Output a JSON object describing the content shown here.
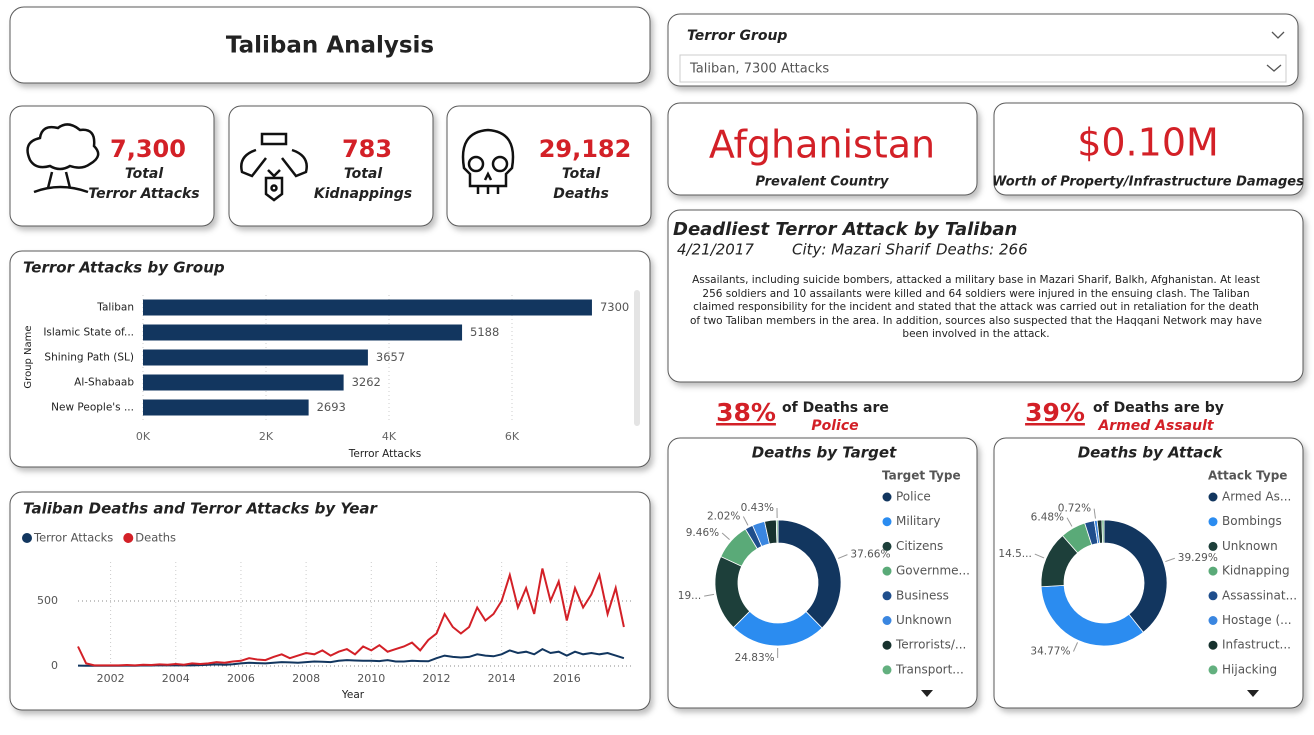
{
  "title": "Taliban Analysis",
  "filter": {
    "label": "Terror Group",
    "selected": "Taliban, 7300 Attacks"
  },
  "kpis": [
    {
      "value": "7,300",
      "label": [
        "Total",
        "Terror Attacks"
      ]
    },
    {
      "value": "783",
      "label": [
        "Total",
        "Kidnappings"
      ]
    },
    {
      "value": "29,182",
      "label": [
        "Total",
        "Deaths"
      ]
    }
  ],
  "country": {
    "value": "Afghanistan",
    "label": "Prevalent Country"
  },
  "damage": {
    "value": "$0.10M",
    "label": "Worth of Property/Infrastructure Damages"
  },
  "deadliest": {
    "title": "Deadliest Terror Attack by Taliban",
    "date": "4/21/2017",
    "city": "City: Mazari Sharif",
    "deaths": "Deaths: 266",
    "description": "Assailants, including suicide bombers, attacked a military base in Mazari Sharif, Balkh, Afghanistan. At least 256 soldiers and 10 assailants were killed and 64 soldiers were injured in the ensuing clash. The Taliban claimed responsibility for the incident and stated that the attack was carried out in retaliation for the death of two Taliban members in the area. In addition, sources also suspected that the Haqqani Network may have been involved in the attack."
  },
  "callouts": [
    {
      "percent": "38%",
      "text": "of Deaths are",
      "category": "Police"
    },
    {
      "percent": "39%",
      "text": "of Deaths are by",
      "category": "Armed Assault"
    }
  ],
  "chart_data": [
    {
      "type": "bar",
      "orientation": "horizontal",
      "title": "Terror Attacks by Group",
      "categories": [
        "Taliban",
        "Islamic State of...",
        "Shining Path (SL)",
        "Al-Shabaab",
        "New People's ..."
      ],
      "values": [
        7300,
        5188,
        3657,
        3262,
        2693
      ],
      "color": "#12365f",
      "xlim": [
        0,
        8000
      ],
      "xticks": [
        {
          "value": 0,
          "label": "0K"
        },
        {
          "value": 2000,
          "label": "2K"
        },
        {
          "value": 4000,
          "label": "4K"
        },
        {
          "value": 6000,
          "label": "6K"
        }
      ],
      "xlabel": "Terror Attacks",
      "ylabel": "Group Name",
      "grid": true
    },
    {
      "type": "line",
      "title": "Taliban Deaths and Terror Attacks by Year",
      "x": [
        2001,
        2001.25,
        2001.5,
        2001.75,
        2002,
        2002.25,
        2002.5,
        2002.75,
        2003,
        2003.25,
        2003.5,
        2003.75,
        2004,
        2004.25,
        2004.5,
        2004.75,
        2005,
        2005.25,
        2005.5,
        2005.75,
        2006,
        2006.25,
        2006.5,
        2006.75,
        2007,
        2007.25,
        2007.5,
        2007.75,
        2008,
        2008.25,
        2008.5,
        2008.75,
        2009,
        2009.25,
        2009.5,
        2009.75,
        2010,
        2010.25,
        2010.5,
        2010.75,
        2011,
        2011.25,
        2011.5,
        2011.75,
        2012,
        2012.25,
        2012.5,
        2012.75,
        2013,
        2013.25,
        2013.5,
        2013.75,
        2014,
        2014.25,
        2014.5,
        2014.75,
        2015,
        2015.25,
        2015.5,
        2015.75,
        2016,
        2016.25,
        2016.5,
        2016.75,
        2017,
        2017.25,
        2017.5,
        2017.75
      ],
      "series": [
        {
          "name": "Terror Attacks",
          "color": "#12365f",
          "values": [
            3,
            2,
            2,
            2,
            2,
            2,
            3,
            2,
            5,
            4,
            6,
            5,
            5,
            6,
            5,
            7,
            10,
            12,
            10,
            14,
            20,
            25,
            22,
            20,
            25,
            30,
            28,
            25,
            30,
            35,
            32,
            30,
            40,
            45,
            42,
            40,
            40,
            38,
            45,
            35,
            35,
            40,
            38,
            36,
            60,
            80,
            70,
            65,
            70,
            90,
            80,
            75,
            90,
            120,
            100,
            110,
            90,
            130,
            100,
            110,
            80,
            110,
            90,
            100,
            90,
            100,
            80,
            60
          ]
        },
        {
          "name": "Deaths",
          "color": "#d32027",
          "values": [
            150,
            20,
            5,
            5,
            5,
            5,
            8,
            5,
            10,
            8,
            12,
            10,
            15,
            10,
            20,
            15,
            20,
            30,
            25,
            35,
            40,
            60,
            50,
            45,
            70,
            90,
            60,
            80,
            100,
            90,
            120,
            80,
            110,
            130,
            90,
            150,
            120,
            160,
            110,
            130,
            150,
            180,
            120,
            200,
            250,
            400,
            300,
            250,
            300,
            450,
            350,
            400,
            500,
            700,
            450,
            600,
            400,
            750,
            500,
            650,
            350,
            600,
            450,
            550,
            700,
            400,
            600,
            300
          ]
        }
      ],
      "xlim": [
        2001,
        2018
      ],
      "xticks": [
        2002,
        2004,
        2006,
        2008,
        2010,
        2012,
        2014,
        2016
      ],
      "ylim": [
        0,
        800
      ],
      "yticks": [
        0,
        500
      ],
      "xlabel": "Year",
      "grid": true
    },
    {
      "type": "donut",
      "title": "Deaths by Target",
      "legend_title": "Target Type",
      "categories": [
        "Police",
        "Military",
        "Citizens",
        "Governme...",
        "Business",
        "Unknown",
        "Terrorists/...",
        "Transport..."
      ],
      "values": [
        37.66,
        24.83,
        19.4,
        9.46,
        2.02,
        3.2,
        3.0,
        0.43
      ],
      "value_labels": [
        "37.66%",
        "24.83%",
        "19...",
        "9.46%",
        "2.02%",
        null,
        null,
        "0.43%"
      ],
      "colors": [
        "#12365f",
        "#2b8cf0",
        "#1d3f3a",
        "#5aaa78",
        "#1f4e8c",
        "#3a86e0",
        "#17322e",
        "#63b07f"
      ]
    },
    {
      "type": "donut",
      "title": "Deaths by Attack",
      "legend_title": "Attack Type",
      "categories": [
        "Armed As...",
        "Bombings",
        "Unknown",
        "Kidnapping",
        "Assassinat...",
        "Hostage (...",
        "Infastruct...",
        "Hijacking"
      ],
      "values": [
        39.29,
        34.77,
        14.5,
        6.48,
        2.5,
        0.72,
        1.2,
        0.54
      ],
      "value_labels": [
        "39.29%",
        "34.77%",
        "14.5...",
        "6.48%",
        null,
        "0.72%",
        null,
        null
      ],
      "colors": [
        "#12365f",
        "#2b8cf0",
        "#1d3f3a",
        "#5aaa78",
        "#1f4e8c",
        "#3a86e0",
        "#17322e",
        "#63b07f"
      ]
    }
  ]
}
